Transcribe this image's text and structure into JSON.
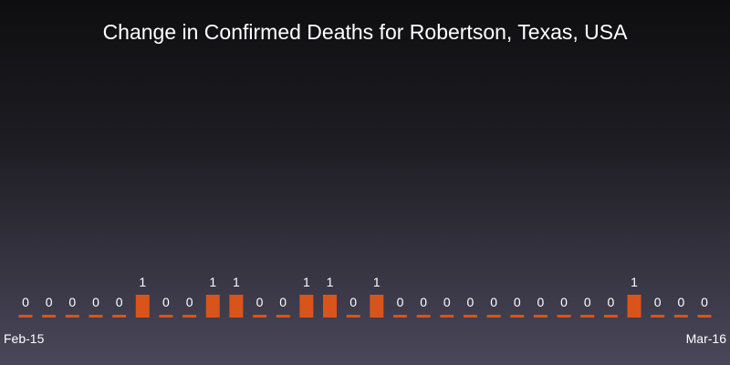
{
  "chart_data": {
    "type": "bar",
    "title": "Change in Confirmed Deaths for Robertson, Texas, USA",
    "xlabel": "",
    "ylabel": "",
    "x_start_label": "Feb-15",
    "x_end_label": "Mar-16",
    "values": [
      0,
      0,
      0,
      0,
      0,
      1,
      0,
      0,
      1,
      1,
      0,
      0,
      1,
      1,
      0,
      1,
      0,
      0,
      0,
      0,
      0,
      0,
      0,
      0,
      0,
      0,
      1,
      0,
      0,
      0
    ],
    "ylim": [
      0,
      1
    ],
    "grid": false,
    "legend": "none",
    "colors": {
      "bar": "#d9541a",
      "text": "#ffffff"
    }
  }
}
